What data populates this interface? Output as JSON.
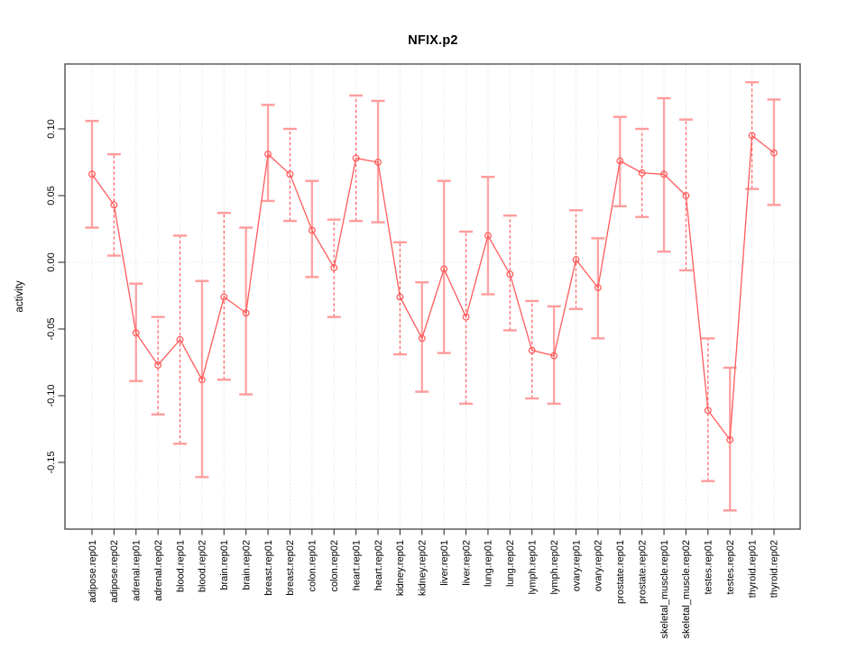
{
  "chart_data": {
    "type": "line",
    "title": "NFIX.p2",
    "xlabel": "",
    "ylabel": "activity",
    "legend": "none",
    "grid": "dotted vertical gridline per category, dotted horizontal line at zero",
    "ylim": [
      -0.2,
      0.149
    ],
    "y_ticks": [
      0.1,
      0.05,
      0.0,
      -0.05,
      -0.1,
      -0.15
    ],
    "y_tick_labels": [
      "0.10",
      "0.05",
      "0.00",
      "-0.05",
      "-0.10",
      "-0.15"
    ],
    "marker": "open-circle",
    "categories": [
      "adipose.rep01",
      "adipose.rep02",
      "adrenal.rep01",
      "adrenal.rep02",
      "blood.rep01",
      "blood.rep02",
      "brain.rep01",
      "brain.rep02",
      "breast.rep01",
      "breast.rep02",
      "colon.rep01",
      "colon.rep02",
      "heart.rep01",
      "heart.rep02",
      "kidney.rep01",
      "kidney.rep02",
      "liver.rep01",
      "liver.rep02",
      "lung.rep01",
      "lung.rep02",
      "lymph.rep01",
      "lymph.rep02",
      "ovary.rep01",
      "ovary.rep02",
      "prostate.rep01",
      "prostate.rep02",
      "skeletal_muscle.rep01",
      "skeletal_muscle.rep02",
      "testes.rep01",
      "testes.rep02",
      "thyroid.rep01",
      "thyroid.rep02"
    ],
    "points": [
      {
        "label": "adipose.rep01",
        "value": 0.066,
        "lo": 0.026,
        "hi": 0.106,
        "stem_style": "solid"
      },
      {
        "label": "adipose.rep02",
        "value": 0.043,
        "lo": 0.005,
        "hi": 0.081,
        "stem_style": "dashed"
      },
      {
        "label": "adrenal.rep01",
        "value": -0.053,
        "lo": -0.089,
        "hi": -0.016,
        "stem_style": "solid"
      },
      {
        "label": "adrenal.rep02",
        "value": -0.077,
        "lo": -0.114,
        "hi": -0.041,
        "stem_style": "dashed"
      },
      {
        "label": "blood.rep01",
        "value": -0.058,
        "lo": -0.136,
        "hi": 0.02,
        "stem_style": "dashed"
      },
      {
        "label": "blood.rep02",
        "value": -0.088,
        "lo": -0.161,
        "hi": -0.014,
        "stem_style": "solid"
      },
      {
        "label": "brain.rep01",
        "value": -0.026,
        "lo": -0.088,
        "hi": 0.037,
        "stem_style": "dashed"
      },
      {
        "label": "brain.rep02",
        "value": -0.038,
        "lo": -0.099,
        "hi": 0.026,
        "stem_style": "solid"
      },
      {
        "label": "breast.rep01",
        "value": 0.081,
        "lo": 0.046,
        "hi": 0.118,
        "stem_style": "solid"
      },
      {
        "label": "breast.rep02",
        "value": 0.066,
        "lo": 0.031,
        "hi": 0.1,
        "stem_style": "dashed"
      },
      {
        "label": "colon.rep01",
        "value": 0.024,
        "lo": -0.011,
        "hi": 0.061,
        "stem_style": "solid"
      },
      {
        "label": "colon.rep02",
        "value": -0.004,
        "lo": -0.041,
        "hi": 0.032,
        "stem_style": "dashed"
      },
      {
        "label": "heart.rep01",
        "value": 0.078,
        "lo": 0.031,
        "hi": 0.125,
        "stem_style": "dashed"
      },
      {
        "label": "heart.rep02",
        "value": 0.075,
        "lo": 0.03,
        "hi": 0.121,
        "stem_style": "solid"
      },
      {
        "label": "kidney.rep01",
        "value": -0.026,
        "lo": -0.069,
        "hi": 0.015,
        "stem_style": "dashed"
      },
      {
        "label": "kidney.rep02",
        "value": -0.057,
        "lo": -0.097,
        "hi": -0.015,
        "stem_style": "solid"
      },
      {
        "label": "liver.rep01",
        "value": -0.005,
        "lo": -0.068,
        "hi": 0.061,
        "stem_style": "solid"
      },
      {
        "label": "liver.rep02",
        "value": -0.041,
        "lo": -0.106,
        "hi": 0.023,
        "stem_style": "dashed"
      },
      {
        "label": "lung.rep01",
        "value": 0.02,
        "lo": -0.024,
        "hi": 0.064,
        "stem_style": "solid"
      },
      {
        "label": "lung.rep02",
        "value": -0.009,
        "lo": -0.051,
        "hi": 0.035,
        "stem_style": "dashed"
      },
      {
        "label": "lymph.rep01",
        "value": -0.066,
        "lo": -0.102,
        "hi": -0.029,
        "stem_style": "dashed"
      },
      {
        "label": "lymph.rep02",
        "value": -0.07,
        "lo": -0.106,
        "hi": -0.033,
        "stem_style": "solid"
      },
      {
        "label": "ovary.rep01",
        "value": 0.002,
        "lo": -0.035,
        "hi": 0.039,
        "stem_style": "dashed"
      },
      {
        "label": "ovary.rep02",
        "value": -0.019,
        "lo": -0.057,
        "hi": 0.018,
        "stem_style": "solid"
      },
      {
        "label": "prostate.rep01",
        "value": 0.076,
        "lo": 0.042,
        "hi": 0.109,
        "stem_style": "solid"
      },
      {
        "label": "prostate.rep02",
        "value": 0.067,
        "lo": 0.034,
        "hi": 0.1,
        "stem_style": "dashed"
      },
      {
        "label": "skeletal_muscle.rep01",
        "value": 0.066,
        "lo": 0.008,
        "hi": 0.123,
        "stem_style": "solid"
      },
      {
        "label": "skeletal_muscle.rep02",
        "value": 0.05,
        "lo": -0.006,
        "hi": 0.107,
        "stem_style": "dashed"
      },
      {
        "label": "testes.rep01",
        "value": -0.111,
        "lo": -0.164,
        "hi": -0.057,
        "stem_style": "dashed"
      },
      {
        "label": "testes.rep02",
        "value": -0.133,
        "lo": -0.186,
        "hi": -0.079,
        "stem_style": "solid"
      },
      {
        "label": "thyroid.rep01",
        "value": 0.095,
        "lo": 0.055,
        "hi": 0.135,
        "stem_style": "dashed"
      },
      {
        "label": "thyroid.rep02",
        "value": 0.082,
        "lo": 0.043,
        "hi": 0.122,
        "stem_style": "solid"
      }
    ],
    "colors": {
      "series_line": "#ff5b5b",
      "marker_stroke": "#ff5b5b",
      "stem_dashed": "#ff5b5b",
      "stem_solid": "#ffa2a2",
      "cap": "#ff9c9c",
      "gridline": "#dadada",
      "zero_line": "#d8d8d8",
      "plot_border": "#4f4f4f",
      "axis_tick": "#333333",
      "tick_text": "#000000"
    }
  }
}
